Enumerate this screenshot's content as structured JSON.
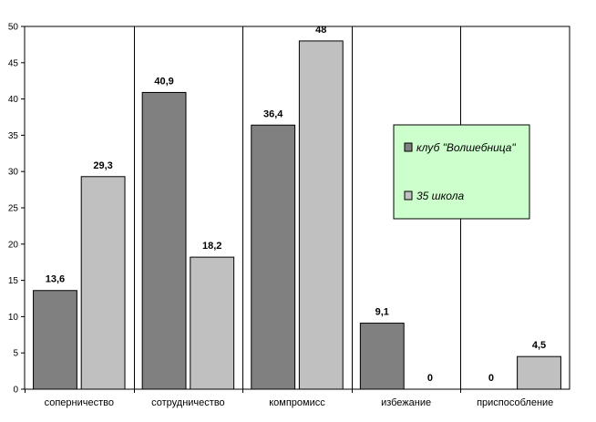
{
  "chart_data": {
    "type": "bar",
    "categories": [
      "соперничество",
      "сотрудничество",
      "компромисс",
      "избежание",
      "приспособление"
    ],
    "series": [
      {
        "name": "клуб \"Волшебница\"",
        "color": "#808080",
        "values": [
          13.6,
          40.9,
          36.4,
          9.1,
          0
        ],
        "labels": [
          "13,6",
          "40,9",
          "36,4",
          "9,1",
          "0"
        ]
      },
      {
        "name": "35 школа",
        "color": "#c0c0c0",
        "values": [
          29.3,
          18.2,
          48,
          0,
          4.5
        ],
        "labels": [
          "29,3",
          "18,2",
          "48",
          "0",
          "4,5"
        ]
      }
    ],
    "ylim": [
      0,
      50
    ],
    "yticks": [
      0,
      5,
      10,
      15,
      20,
      25,
      30,
      35,
      40,
      45,
      50
    ],
    "grid": "vertical category separators",
    "legend": {
      "placement": "right-middle",
      "background": "#ccffcc"
    }
  }
}
